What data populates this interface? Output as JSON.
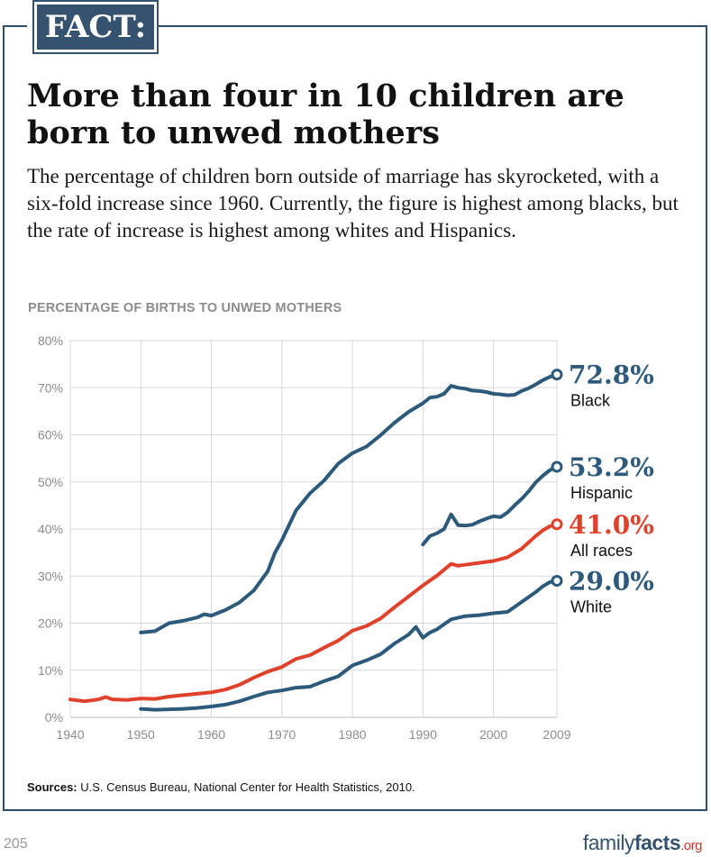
{
  "badge": "FACT:",
  "headline": "More than four in 10 children are born to unwed mothers",
  "intro": "The percentage of children born outside of marriage has skyrocketed, with a six-fold increase since 1960. Currently, the figure is highest among blacks, but the rate of increase is highest among whites and Hispanics.",
  "sources": {
    "label": "Sources:",
    "text": "U.S. Census Bureau, National Center for Health Statistics, 2010."
  },
  "page_number": "205",
  "brand": {
    "part1": "family",
    "part2": "facts",
    "part3": ".org"
  },
  "colors": {
    "frame": "#2d4e6c",
    "blue_series": "#2d5a7b",
    "red_series": "#e0412b",
    "grid": "#d9d9d9",
    "axis_text": "#8c8c8c"
  },
  "chart_data": {
    "type": "line",
    "title": "PERCENTAGE OF BIRTHS TO UNWED MOTHERS",
    "xlabel": "",
    "ylabel": "",
    "xlim": [
      1940,
      2009
    ],
    "ylim": [
      0,
      80
    ],
    "x_ticks": [
      "1940",
      "1950",
      "1960",
      "1970",
      "1980",
      "1990",
      "2000",
      "2009"
    ],
    "y_ticks": [
      "0%",
      "10%",
      "20%",
      "30%",
      "40%",
      "50%",
      "60%",
      "70%",
      "80%"
    ],
    "grid": true,
    "series": [
      {
        "name": "Black",
        "color": "#2d5a7b",
        "end_label": "72.8%",
        "x": [
          1950,
          1952,
          1954,
          1956,
          1958,
          1959,
          1960,
          1962,
          1964,
          1966,
          1968,
          1969,
          1970,
          1972,
          1974,
          1976,
          1978,
          1980,
          1982,
          1984,
          1986,
          1988,
          1990,
          1991,
          1992,
          1993,
          1994,
          1995,
          1996,
          1997,
          1998,
          1999,
          2000,
          2001,
          2002,
          2003,
          2004,
          2005,
          2006,
          2007,
          2008,
          2009
        ],
        "y": [
          18.0,
          18.3,
          20.0,
          20.5,
          21.2,
          21.9,
          21.6,
          22.8,
          24.4,
          26.9,
          31.0,
          34.9,
          37.6,
          43.9,
          47.6,
          50.3,
          53.9,
          56.1,
          57.5,
          59.9,
          62.6,
          64.9,
          66.7,
          67.9,
          68.1,
          68.7,
          70.4,
          70.0,
          69.8,
          69.4,
          69.3,
          69.1,
          68.7,
          68.6,
          68.4,
          68.5,
          69.3,
          69.9,
          70.7,
          71.6,
          72.3,
          72.8
        ]
      },
      {
        "name": "Hispanic",
        "color": "#2d5a7b",
        "end_label": "53.2%",
        "x": [
          1990,
          1991,
          1992,
          1993,
          1994,
          1995,
          1996,
          1997,
          1998,
          1999,
          2000,
          2001,
          2002,
          2003,
          2004,
          2005,
          2006,
          2007,
          2008,
          2009
        ],
        "y": [
          36.7,
          38.5,
          39.1,
          40.0,
          43.1,
          40.8,
          40.7,
          40.9,
          41.6,
          42.2,
          42.7,
          42.5,
          43.5,
          45.0,
          46.4,
          48.0,
          49.9,
          51.3,
          52.5,
          53.2
        ]
      },
      {
        "name": "All races",
        "color": "#e0412b",
        "end_label": "41.0%",
        "x": [
          1940,
          1942,
          1944,
          1945,
          1946,
          1948,
          1950,
          1952,
          1954,
          1956,
          1958,
          1960,
          1962,
          1964,
          1966,
          1968,
          1970,
          1972,
          1974,
          1976,
          1978,
          1980,
          1982,
          1984,
          1986,
          1988,
          1990,
          1992,
          1994,
          1995,
          1996,
          1998,
          2000,
          2002,
          2004,
          2006,
          2007,
          2008,
          2009
        ],
        "y": [
          3.8,
          3.4,
          3.8,
          4.3,
          3.8,
          3.7,
          4.0,
          3.9,
          4.4,
          4.7,
          5.0,
          5.3,
          5.9,
          6.9,
          8.4,
          9.7,
          10.7,
          12.4,
          13.2,
          14.8,
          16.3,
          18.4,
          19.4,
          21.0,
          23.4,
          25.7,
          28.0,
          30.1,
          32.6,
          32.2,
          32.4,
          32.8,
          33.2,
          34.0,
          35.8,
          38.5,
          39.7,
          40.6,
          41.0
        ]
      },
      {
        "name": "White",
        "color": "#2d5a7b",
        "end_label": "29.0%",
        "x": [
          1950,
          1952,
          1954,
          1956,
          1958,
          1960,
          1962,
          1964,
          1966,
          1968,
          1970,
          1972,
          1974,
          1976,
          1978,
          1980,
          1982,
          1984,
          1986,
          1988,
          1989,
          1990,
          1991,
          1992,
          1994,
          1996,
          1998,
          2000,
          2002,
          2004,
          2006,
          2007,
          2008,
          2009
        ],
        "y": [
          1.8,
          1.6,
          1.7,
          1.8,
          2.0,
          2.3,
          2.7,
          3.4,
          4.4,
          5.3,
          5.7,
          6.3,
          6.5,
          7.7,
          8.7,
          11.0,
          12.1,
          13.4,
          15.7,
          17.6,
          19.2,
          16.9,
          18.0,
          18.7,
          20.8,
          21.5,
          21.7,
          22.1,
          22.4,
          24.5,
          26.6,
          27.8,
          28.7,
          29.0
        ]
      }
    ]
  }
}
